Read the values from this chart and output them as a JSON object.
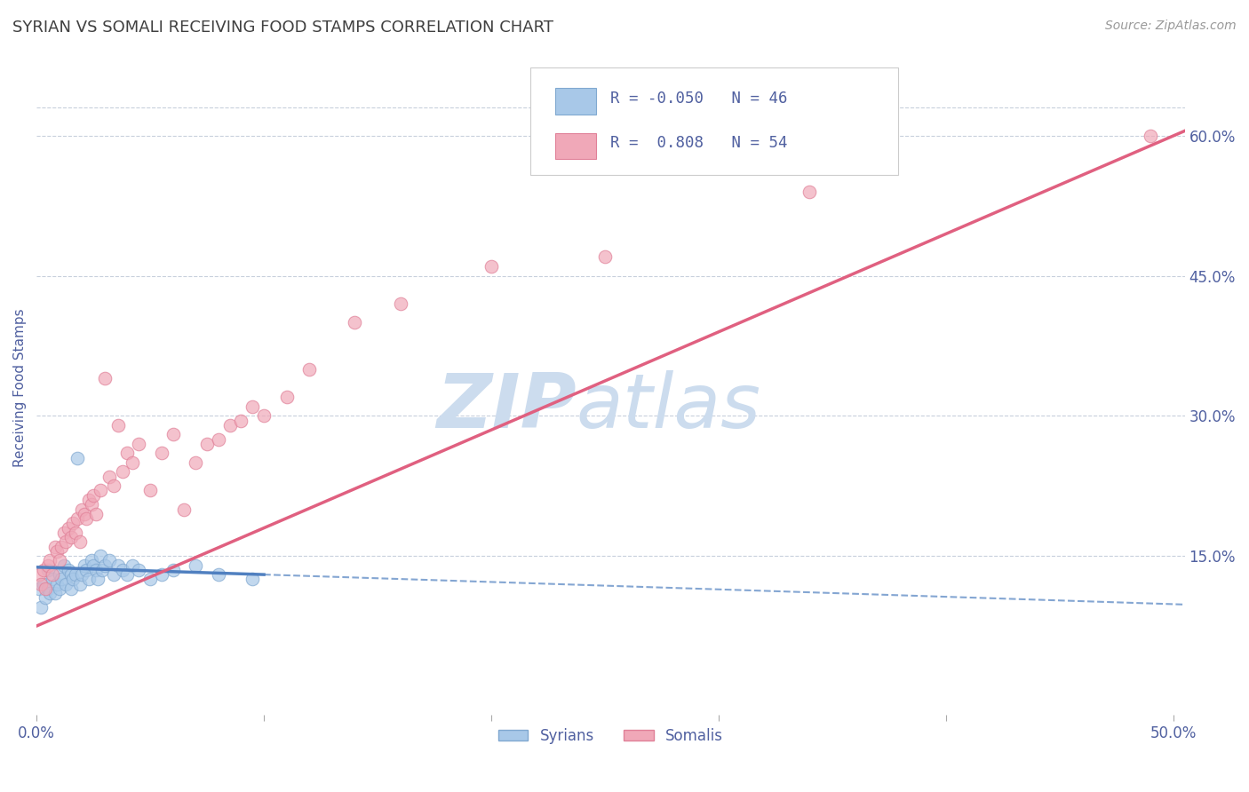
{
  "title": "SYRIAN VS SOMALI RECEIVING FOOD STAMPS CORRELATION CHART",
  "source_text": "Source: ZipAtlas.com",
  "ylabel": "Receiving Food Stamps",
  "xlim": [
    0.0,
    0.505
  ],
  "ylim": [
    -0.02,
    0.68
  ],
  "xticks": [
    0.0,
    0.1,
    0.2,
    0.3,
    0.4,
    0.5
  ],
  "xticklabels": [
    "0.0%",
    "",
    "",
    "",
    "",
    "50.0%"
  ],
  "yticks_right": [
    0.15,
    0.3,
    0.45,
    0.6
  ],
  "yticklabels_right": [
    "15.0%",
    "30.0%",
    "45.0%",
    "60.0%"
  ],
  "syrian_color": "#a8c8e8",
  "somali_color": "#f0a8b8",
  "syrian_edge_color": "#80a8d0",
  "somali_edge_color": "#e08098",
  "syrian_line_color": "#5080c0",
  "somali_line_color": "#e06080",
  "R_syrian": -0.05,
  "N_syrian": 46,
  "R_somali": 0.808,
  "N_somali": 54,
  "watermark_zip": "ZIP",
  "watermark_atlas": "atlas",
  "watermark_color": "#ccdcee",
  "background_color": "#ffffff",
  "grid_color": "#c8d0dc",
  "title_color": "#404040",
  "axis_label_color": "#5060a0",
  "legend_text_color": "#5060a0",
  "syrian_scatter_x": [
    0.001,
    0.002,
    0.003,
    0.004,
    0.005,
    0.005,
    0.006,
    0.007,
    0.008,
    0.009,
    0.01,
    0.01,
    0.011,
    0.012,
    0.013,
    0.014,
    0.015,
    0.015,
    0.016,
    0.017,
    0.018,
    0.019,
    0.02,
    0.021,
    0.022,
    0.023,
    0.024,
    0.025,
    0.026,
    0.027,
    0.028,
    0.029,
    0.03,
    0.032,
    0.034,
    0.036,
    0.038,
    0.04,
    0.042,
    0.045,
    0.05,
    0.055,
    0.06,
    0.07,
    0.08,
    0.095
  ],
  "syrian_scatter_y": [
    0.115,
    0.095,
    0.12,
    0.105,
    0.115,
    0.135,
    0.11,
    0.125,
    0.11,
    0.12,
    0.13,
    0.115,
    0.125,
    0.14,
    0.12,
    0.135,
    0.13,
    0.115,
    0.125,
    0.13,
    0.255,
    0.12,
    0.13,
    0.14,
    0.135,
    0.125,
    0.145,
    0.14,
    0.135,
    0.125,
    0.15,
    0.135,
    0.14,
    0.145,
    0.13,
    0.14,
    0.135,
    0.13,
    0.14,
    0.135,
    0.125,
    0.13,
    0.135,
    0.14,
    0.13,
    0.125
  ],
  "somali_scatter_x": [
    0.001,
    0.002,
    0.003,
    0.004,
    0.005,
    0.006,
    0.007,
    0.008,
    0.009,
    0.01,
    0.011,
    0.012,
    0.013,
    0.014,
    0.015,
    0.016,
    0.017,
    0.018,
    0.019,
    0.02,
    0.021,
    0.022,
    0.023,
    0.024,
    0.025,
    0.026,
    0.028,
    0.03,
    0.032,
    0.034,
    0.036,
    0.038,
    0.04,
    0.042,
    0.045,
    0.05,
    0.055,
    0.06,
    0.065,
    0.07,
    0.075,
    0.08,
    0.085,
    0.09,
    0.095,
    0.1,
    0.11,
    0.12,
    0.14,
    0.16,
    0.2,
    0.25,
    0.34,
    0.49
  ],
  "somali_scatter_y": [
    0.13,
    0.12,
    0.135,
    0.115,
    0.14,
    0.145,
    0.13,
    0.16,
    0.155,
    0.145,
    0.16,
    0.175,
    0.165,
    0.18,
    0.17,
    0.185,
    0.175,
    0.19,
    0.165,
    0.2,
    0.195,
    0.19,
    0.21,
    0.205,
    0.215,
    0.195,
    0.22,
    0.34,
    0.235,
    0.225,
    0.29,
    0.24,
    0.26,
    0.25,
    0.27,
    0.22,
    0.26,
    0.28,
    0.2,
    0.25,
    0.27,
    0.275,
    0.29,
    0.295,
    0.31,
    0.3,
    0.32,
    0.35,
    0.4,
    0.42,
    0.46,
    0.47,
    0.54,
    0.6
  ],
  "syrian_line_x0": 0.0,
  "syrian_line_x_solid_end": 0.1,
  "syrian_line_x1": 0.505,
  "syrian_line_y0": 0.138,
  "syrian_line_y1": 0.098,
  "somali_line_x0": 0.0,
  "somali_line_x1": 0.505,
  "somali_line_y0": 0.075,
  "somali_line_y1": 0.605
}
